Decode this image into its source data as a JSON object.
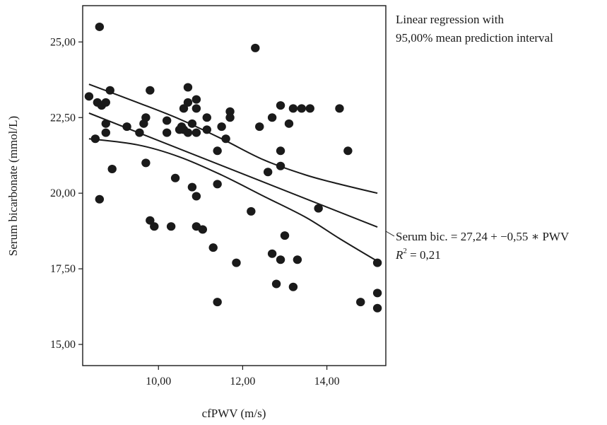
{
  "chart_data": {
    "type": "scatter",
    "title": "",
    "xlabel": "cfPWV (m/s)",
    "ylabel": "Serum bicarbonate (mmol/L)",
    "xlim": [
      8.2,
      15.4
    ],
    "ylim": [
      14.3,
      26.2
    ],
    "x_ticks": [
      10,
      12,
      14
    ],
    "x_tick_labels": [
      "10,00",
      "12,00",
      "14,00"
    ],
    "y_ticks": [
      15,
      17.5,
      20,
      22.5,
      25
    ],
    "y_tick_labels": [
      "15,00",
      "17,50",
      "20,00",
      "22,50",
      "25,00"
    ],
    "grid": false,
    "legend": "none",
    "points": [
      [
        8.35,
        23.2
      ],
      [
        8.6,
        25.5
      ],
      [
        8.55,
        23.0
      ],
      [
        8.65,
        22.9
      ],
      [
        8.75,
        23.0
      ],
      [
        8.85,
        23.4
      ],
      [
        8.75,
        22.3
      ],
      [
        8.75,
        22.0
      ],
      [
        8.5,
        21.8
      ],
      [
        8.6,
        19.8
      ],
      [
        8.9,
        20.8
      ],
      [
        9.25,
        22.2
      ],
      [
        9.55,
        22.0
      ],
      [
        9.65,
        22.3
      ],
      [
        9.7,
        22.5
      ],
      [
        9.8,
        23.4
      ],
      [
        9.7,
        21.0
      ],
      [
        9.8,
        19.1
      ],
      [
        9.9,
        18.9
      ],
      [
        10.2,
        22.4
      ],
      [
        10.2,
        22.0
      ],
      [
        10.3,
        18.9
      ],
      [
        10.4,
        20.5
      ],
      [
        10.5,
        22.1
      ],
      [
        10.55,
        22.2
      ],
      [
        10.6,
        22.8
      ],
      [
        10.6,
        22.1
      ],
      [
        10.7,
        23.5
      ],
      [
        10.7,
        23.0
      ],
      [
        10.7,
        22.0
      ],
      [
        10.8,
        22.3
      ],
      [
        10.8,
        20.2
      ],
      [
        10.9,
        23.1
      ],
      [
        10.9,
        22.8
      ],
      [
        10.9,
        22.0
      ],
      [
        10.9,
        19.9
      ],
      [
        10.9,
        18.9
      ],
      [
        11.05,
        18.8
      ],
      [
        11.15,
        22.5
      ],
      [
        11.15,
        22.1
      ],
      [
        11.3,
        18.2
      ],
      [
        11.4,
        21.4
      ],
      [
        11.4,
        20.3
      ],
      [
        11.4,
        16.4
      ],
      [
        11.5,
        22.2
      ],
      [
        11.6,
        21.8
      ],
      [
        11.7,
        22.7
      ],
      [
        11.7,
        22.5
      ],
      [
        11.85,
        17.7
      ],
      [
        12.2,
        19.4
      ],
      [
        12.3,
        24.8
      ],
      [
        12.4,
        22.2
      ],
      [
        12.6,
        20.7
      ],
      [
        12.7,
        22.5
      ],
      [
        12.7,
        18.0
      ],
      [
        12.8,
        17.0
      ],
      [
        12.9,
        22.9
      ],
      [
        12.9,
        21.4
      ],
      [
        12.9,
        20.9
      ],
      [
        12.9,
        17.8
      ],
      [
        13.0,
        18.6
      ],
      [
        13.1,
        22.3
      ],
      [
        13.2,
        22.8
      ],
      [
        13.2,
        16.9
      ],
      [
        13.3,
        17.8
      ],
      [
        13.4,
        22.8
      ],
      [
        13.6,
        22.8
      ],
      [
        13.8,
        19.5
      ],
      [
        14.3,
        22.8
      ],
      [
        14.5,
        21.4
      ],
      [
        14.8,
        16.4
      ],
      [
        15.2,
        17.7
      ],
      [
        15.2,
        16.7
      ],
      [
        15.2,
        16.2
      ]
    ],
    "regression": {
      "intercept": 27.24,
      "slope": -0.55,
      "x_range": [
        8.35,
        15.2
      ]
    },
    "prediction_interval": {
      "upper": [
        [
          8.35,
          23.6
        ],
        [
          9.5,
          23.0
        ],
        [
          10.5,
          22.45
        ],
        [
          11.5,
          21.8
        ],
        [
          12.5,
          21.1
        ],
        [
          13.5,
          20.6
        ],
        [
          14.3,
          20.3
        ],
        [
          15.2,
          20.0
        ]
      ],
      "lower": [
        [
          8.35,
          21.8
        ],
        [
          9.5,
          21.6
        ],
        [
          10.5,
          21.2
        ],
        [
          11.5,
          20.6
        ],
        [
          12.5,
          19.9
        ],
        [
          13.5,
          19.2
        ],
        [
          14.3,
          18.5
        ],
        [
          15.2,
          17.75
        ]
      ]
    },
    "annotations": {
      "interval_title_line1": "Linear regression with",
      "interval_title_line2": "95,00% mean prediction interval",
      "equation": "Serum bic. = 27,24 + −0,55 ∗ PWV",
      "r2_prefix": "R",
      "r2_exponent": "2",
      "r2_value": " = 0,21"
    }
  }
}
